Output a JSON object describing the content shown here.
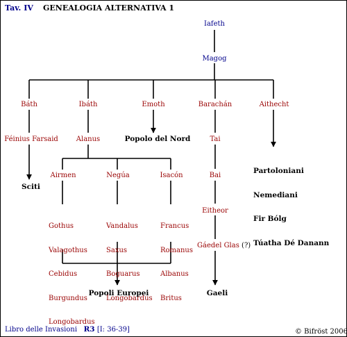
{
  "header": {
    "tav": "Tav. IV",
    "title": "GENEALOGIA ALTERNATIVA 1"
  },
  "colors": {
    "name_red": "#990000",
    "name_blue": "#00008b",
    "line": "#000000"
  },
  "nodes": {
    "iafeth": "Iafeth",
    "magog": "Magog",
    "bath": "Báth",
    "ibath": "Ibáth",
    "emoth": "Emoth",
    "barachan": "Barachán",
    "aithecht": "Aithecht",
    "feinius": "Féinius Farsaid",
    "alanus": "Alanus",
    "popolo_nord": "Popolo del Nord",
    "tai": "Tai",
    "sciti": "Sciti",
    "airmen": "Airmen",
    "negua": "Negúa",
    "isacon": "Isacón",
    "bai": "Bai",
    "eitheor": "Eitheor",
    "gaedel": "Gáedel Glas",
    "gaedel_note": "(?)",
    "popoli_europei": "Popoli Europei",
    "gaeli": "Gaeli"
  },
  "groups": {
    "aithecht_peoples": [
      "Partoloniani",
      "Nemediani",
      "Fir Bólg",
      "Túatha Dé Danann"
    ],
    "airmen_peoples": [
      "Gothus",
      "Valagothus",
      "Cebidus",
      "Burgundus",
      "Longobardus"
    ],
    "negua_peoples": [
      "Vandalus",
      "Saxus",
      "Boguarus",
      "Longobardus"
    ],
    "isacon_peoples": [
      "Francus",
      "Romanus",
      "Albanus",
      "Britus"
    ]
  },
  "footer": {
    "source": "Libro delle Invasioni",
    "ref": "R3",
    "ref_range": "[I: 36-39]",
    "copyright": "© Bifröst 2006"
  }
}
